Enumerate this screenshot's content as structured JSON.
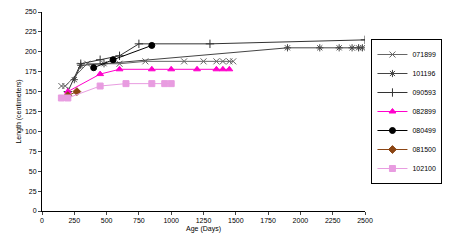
{
  "chart_data": {
    "type": "line",
    "x_label": "Age (Days)",
    "y_label": "Length (centimeters)",
    "xlim": [
      0,
      2500
    ],
    "xticks": [
      0,
      250,
      500,
      750,
      1000,
      1250,
      1500,
      1750,
      2000,
      2250,
      2500
    ],
    "ylim": [
      0,
      250
    ],
    "yticks": [
      0,
      25,
      50,
      75,
      100,
      125,
      150,
      175,
      200,
      225,
      250
    ],
    "grid": false,
    "legend": "right",
    "series": [
      {
        "name": "071899",
        "color": "#666666",
        "marker": "x",
        "x": [
          150,
          180,
          350,
          600,
          800,
          1100,
          1250,
          1350,
          1400,
          1450,
          1480
        ],
        "values": [
          157,
          157,
          185,
          185,
          188,
          188,
          188,
          188,
          188,
          188,
          188
        ]
      },
      {
        "name": "101196",
        "color": "#444444",
        "marker": "star",
        "x": [
          250,
          300,
          480,
          1900,
          2150,
          2300,
          2400,
          2450,
          2480
        ],
        "values": [
          165,
          183,
          185,
          205,
          205,
          205,
          205,
          205,
          205
        ]
      },
      {
        "name": "090593",
        "color": "#333333",
        "marker": "cross",
        "x": [
          200,
          300,
          450,
          600,
          750,
          1300,
          2500
        ],
        "values": [
          150,
          185,
          190,
          195,
          210,
          210,
          215
        ]
      },
      {
        "name": "082899",
        "color": "#ff00cc",
        "marker": "triangle",
        "x": [
          200,
          450,
          600,
          850,
          1000,
          1200,
          1350,
          1400,
          1450
        ],
        "values": [
          150,
          172,
          178,
          178,
          178,
          178,
          178,
          178,
          178
        ]
      },
      {
        "name": "080499",
        "color": "#000000",
        "marker": "circle",
        "x": [
          400,
          550,
          850
        ],
        "values": [
          180,
          190,
          208
        ]
      },
      {
        "name": "081500",
        "color": "#8b4513",
        "marker": "diamond",
        "x": [
          200,
          270
        ],
        "values": [
          145,
          150
        ]
      },
      {
        "name": "102100",
        "color": "#e89ce0",
        "marker": "square",
        "x": [
          150,
          200,
          450,
          650,
          850,
          950,
          1000
        ],
        "values": [
          142,
          142,
          157,
          160,
          160,
          160,
          160
        ]
      }
    ]
  }
}
